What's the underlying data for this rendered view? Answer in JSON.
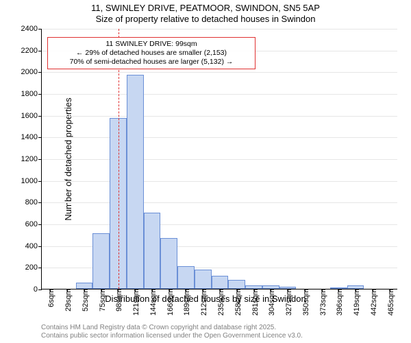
{
  "title": "11, SWINLEY DRIVE, PEATMOOR, SWINDON, SN5 5AP",
  "subtitle": "Size of property relative to detached houses in Swindon",
  "chart": {
    "type": "histogram",
    "x_categories": [
      "6sqm",
      "29sqm",
      "52sqm",
      "75sqm",
      "98sqm",
      "121sqm",
      "144sqm",
      "166sqm",
      "189sqm",
      "212sqm",
      "235sqm",
      "258sqm",
      "281sqm",
      "304sqm",
      "327sqm",
      "350sqm",
      "373sqm",
      "396sqm",
      "419sqm",
      "442sqm",
      "465sqm"
    ],
    "values": [
      0,
      0,
      60,
      510,
      1570,
      1970,
      700,
      470,
      210,
      180,
      120,
      80,
      30,
      30,
      20,
      0,
      0,
      10,
      30,
      0,
      0
    ],
    "bar_fill": "#c7d7f2",
    "bar_stroke": "#6a8fd6",
    "bar_width": 1.0,
    "x_label": "Distribution of detached houses by size in Swindon",
    "y_label": "Number of detached properties",
    "ylim": [
      0,
      2400
    ],
    "ytick_step": 200,
    "grid_color": "#e6e6e6",
    "background": "#ffffff",
    "tick_fontsize": 11,
    "label_fontsize": 13,
    "title_fontsize": 13
  },
  "annotation": {
    "line1": "11 SWINLEY DRIVE: 99sqm",
    "line2": "← 29% of detached houses are smaller (2,153)",
    "line3": "70% of semi-detached houses are larger (5,132) →",
    "marker_x_index": 4.04,
    "box_border": "#e03030"
  },
  "footer": {
    "line1": "Contains HM Land Registry data © Crown copyright and database right 2025.",
    "line2": "Contains public sector information licensed under the Open Government Licence v3.0."
  }
}
